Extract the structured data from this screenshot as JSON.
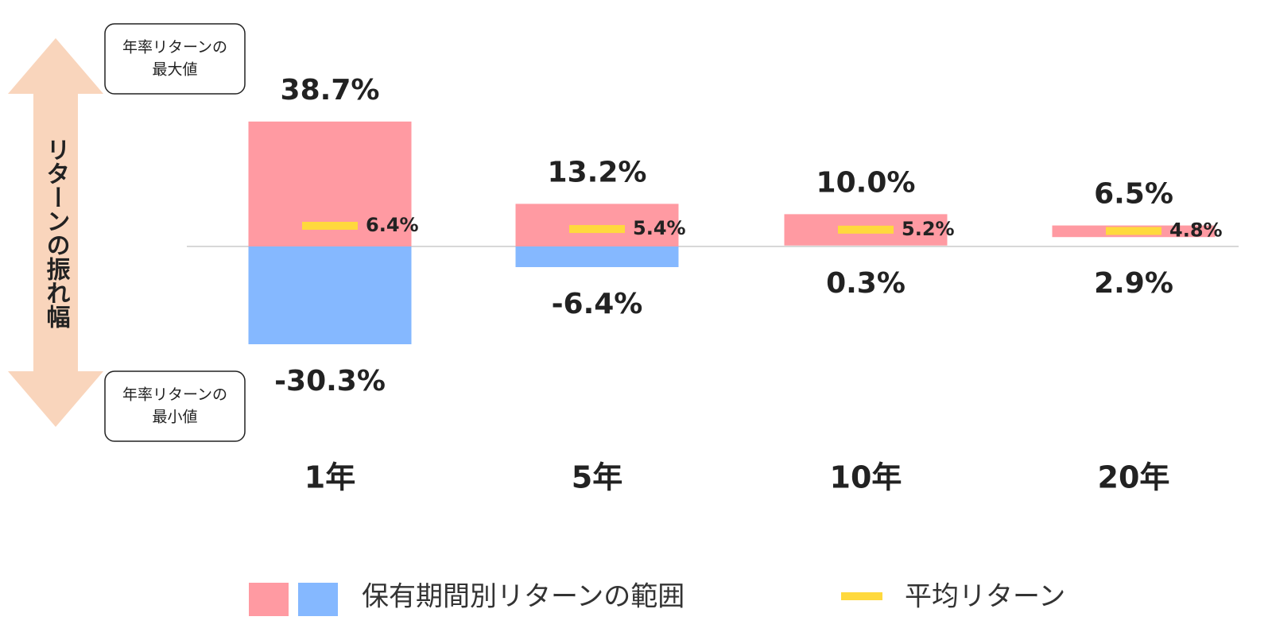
{
  "chart_data": {
    "type": "range",
    "categories": [
      "1年",
      "5年",
      "10年",
      "20年"
    ],
    "series": [
      {
        "name": "保有期間別リターンの範囲",
        "color": "#ff9aa2",
        "negative_color": "#85b8ff",
        "values": [
          38.7,
          13.2,
          10.0,
          6.5
        ],
        "value_labels": [
          "38.7%",
          "13.2%",
          "10.0%",
          "6.5%"
        ],
        "low_values": [
          -30.3,
          -6.4,
          0.3,
          2.9
        ],
        "low_value_labels": [
          "-30.3%",
          "-6.4%",
          "0.3%",
          "2.9%"
        ]
      },
      {
        "name": "平均リターン",
        "color": "#ffd93d",
        "values": [
          6.4,
          5.4,
          5.2,
          4.8
        ],
        "value_labels": [
          "6.4%",
          "5.4%",
          "5.2%",
          "4.8%"
        ]
      }
    ],
    "annotations": {
      "max_box": [
        "年率リターンの",
        "最大値"
      ],
      "min_box": [
        "年率リターンの",
        "最小値"
      ],
      "axis_label": "リターンの振れ幅"
    }
  }
}
